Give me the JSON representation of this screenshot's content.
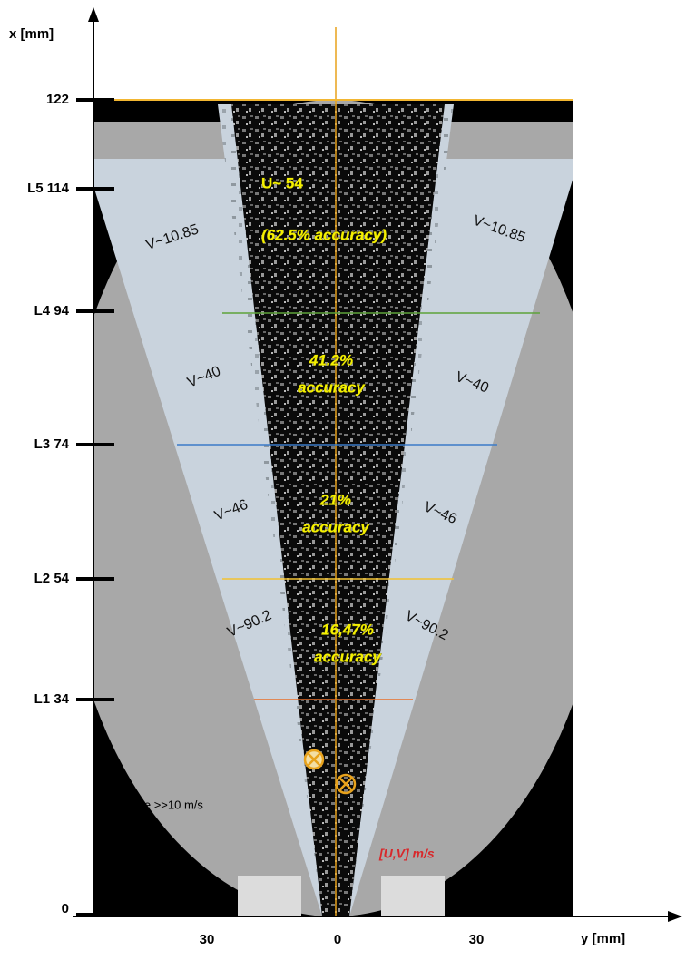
{
  "x_axis": {
    "label": "x [mm]",
    "ticks": [
      "122",
      "L5 114",
      "L4 94",
      "L3 74",
      "L2 54",
      "L1 34",
      "0"
    ]
  },
  "y_axis": {
    "label": "y [mm]",
    "ticks": [
      "30",
      "0",
      "30"
    ]
  },
  "annotations": {
    "velocity_u": "U~ 54",
    "accuracy_top": "(62.5% accuracy)",
    "accuracy_levels": [
      [
        "41.2%",
        "accuracy"
      ],
      [
        "21%",
        "accuracy"
      ],
      [
        "16,47%",
        "accuracy"
      ]
    ],
    "v_left": [
      "V~10.85",
      "V~40",
      "V~46",
      "V~90.2"
    ],
    "v_right": [
      "V~10.85",
      "V~40",
      "V~46",
      "V~90.2"
    ],
    "noise": "noise >>10 m/s",
    "units": "[U,V] m/s"
  }
}
